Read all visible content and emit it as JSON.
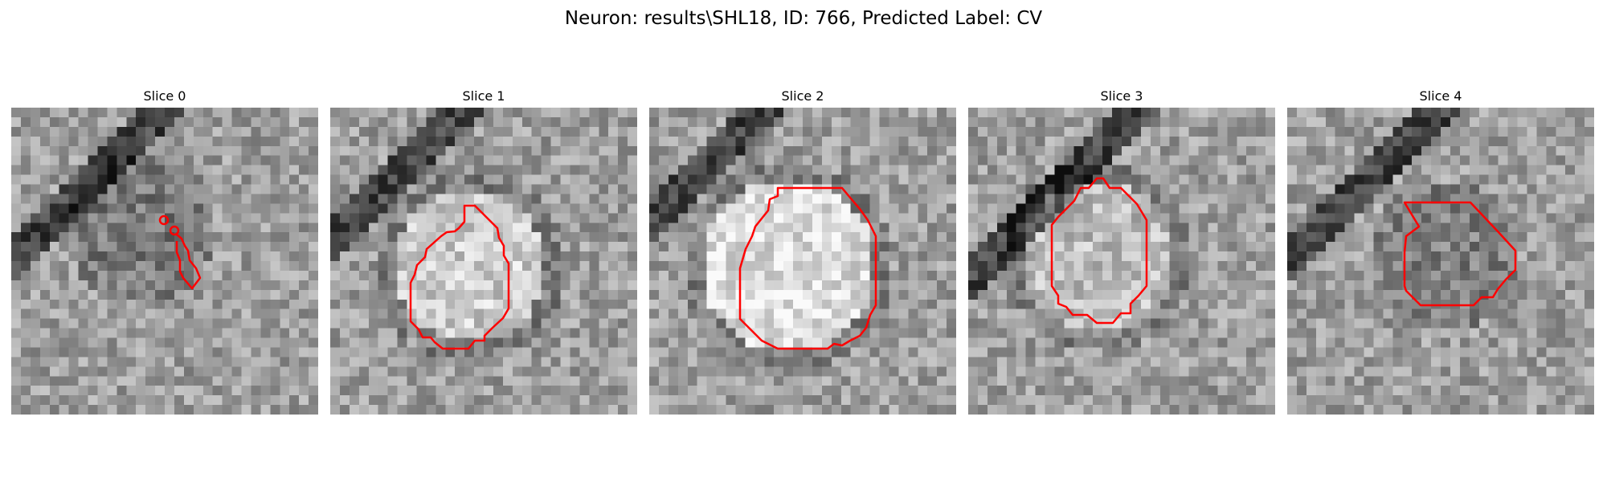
{
  "figure": {
    "title": "Neuron: results\\SHL18, ID: 766, Predicted Label: CV",
    "contour_color": "#ff0000"
  },
  "panels": [
    {
      "title": "Slice 0"
    },
    {
      "title": "Slice 1"
    },
    {
      "title": "Slice 2"
    },
    {
      "title": "Slice 3"
    },
    {
      "title": "Slice 4"
    }
  ]
}
